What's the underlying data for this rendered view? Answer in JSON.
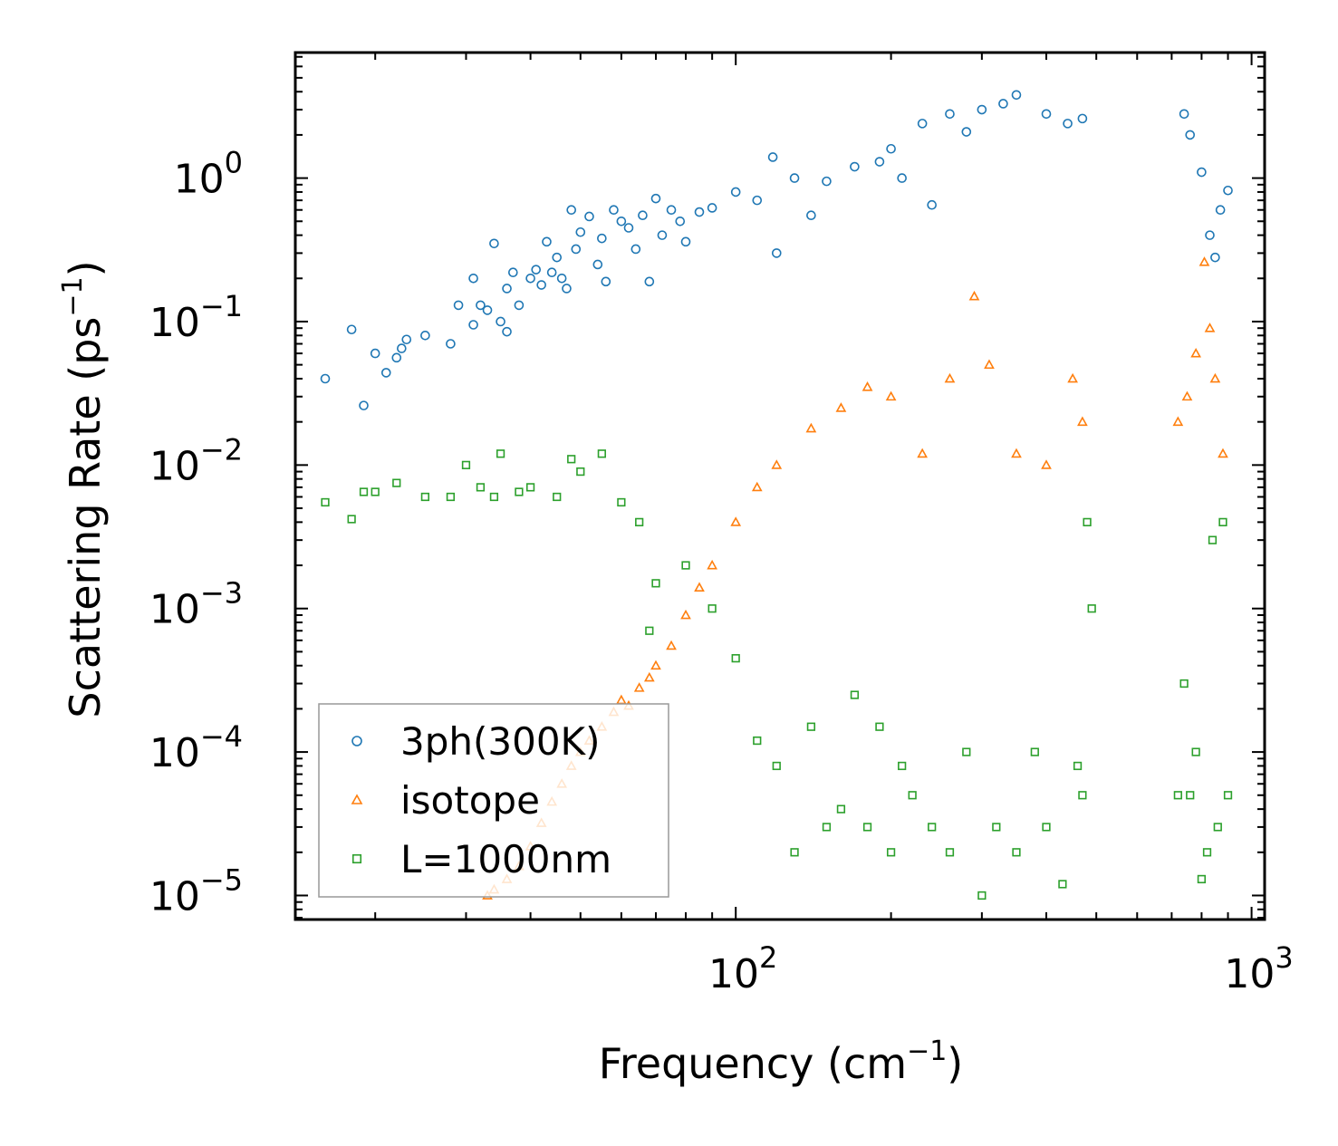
{
  "chart_data": {
    "type": "scatter",
    "xscale": "log",
    "yscale": "log",
    "xlabel_main": "Frequency (cm",
    "xlabel_sup": "−1",
    "xlabel_end": ")",
    "ylabel_main": "Scattering Rate (ps",
    "ylabel_sup": "−1",
    "ylabel_end": ")",
    "xlim": [
      14,
      1060
    ],
    "ylim": [
      6.8e-06,
      7.5
    ],
    "x_ticks": [
      {
        "value": 100,
        "base": "10",
        "exp": "2"
      },
      {
        "value": 1000,
        "base": "10",
        "exp": "3"
      }
    ],
    "y_ticks": [
      {
        "value": 1,
        "base": "10",
        "exp": "0"
      },
      {
        "value": 0.1,
        "base": "10",
        "exp": "−1"
      },
      {
        "value": 0.01,
        "base": "10",
        "exp": "−2"
      },
      {
        "value": 0.001,
        "base": "10",
        "exp": "−3"
      },
      {
        "value": 0.0001,
        "base": "10",
        "exp": "−4"
      },
      {
        "value": 1e-05,
        "base": "10",
        "exp": "−5"
      }
    ],
    "legend_position": "lower-left",
    "series": [
      {
        "name": "3ph(300K)",
        "marker": "circle",
        "color": "#1f77b4",
        "points": [
          [
            16,
            0.04
          ],
          [
            18,
            0.088
          ],
          [
            19,
            0.026
          ],
          [
            20,
            0.06
          ],
          [
            21,
            0.044
          ],
          [
            22,
            0.056
          ],
          [
            22.5,
            0.065
          ],
          [
            23,
            0.075
          ],
          [
            25,
            0.08
          ],
          [
            28,
            0.07
          ],
          [
            29,
            0.13
          ],
          [
            31,
            0.2
          ],
          [
            31,
            0.095
          ],
          [
            32,
            0.13
          ],
          [
            33,
            0.12
          ],
          [
            34,
            0.35
          ],
          [
            35,
            0.1
          ],
          [
            36,
            0.17
          ],
          [
            36,
            0.085
          ],
          [
            37,
            0.22
          ],
          [
            38,
            0.13
          ],
          [
            40,
            0.2
          ],
          [
            41,
            0.23
          ],
          [
            42,
            0.18
          ],
          [
            43,
            0.36
          ],
          [
            44,
            0.22
          ],
          [
            45,
            0.28
          ],
          [
            46,
            0.2
          ],
          [
            47,
            0.17
          ],
          [
            48,
            0.6
          ],
          [
            49,
            0.32
          ],
          [
            50,
            0.42
          ],
          [
            52,
            0.54
          ],
          [
            54,
            0.25
          ],
          [
            55,
            0.38
          ],
          [
            56,
            0.19
          ],
          [
            58,
            0.6
          ],
          [
            60,
            0.5
          ],
          [
            62,
            0.45
          ],
          [
            64,
            0.32
          ],
          [
            66,
            0.55
          ],
          [
            68,
            0.19
          ],
          [
            70,
            0.72
          ],
          [
            72,
            0.4
          ],
          [
            75,
            0.6
          ],
          [
            78,
            0.5
          ],
          [
            80,
            0.36
          ],
          [
            85,
            0.58
          ],
          [
            90,
            0.62
          ],
          [
            100,
            0.8
          ],
          [
            110,
            0.7
          ],
          [
            118,
            1.4
          ],
          [
            120,
            0.3
          ],
          [
            130,
            1.0
          ],
          [
            140,
            0.55
          ],
          [
            150,
            0.95
          ],
          [
            170,
            1.2
          ],
          [
            190,
            1.3
          ],
          [
            200,
            1.6
          ],
          [
            210,
            1.0
          ],
          [
            230,
            2.4
          ],
          [
            240,
            0.65
          ],
          [
            260,
            2.8
          ],
          [
            280,
            2.1
          ],
          [
            300,
            3.0
          ],
          [
            330,
            3.3
          ],
          [
            350,
            3.8
          ],
          [
            400,
            2.8
          ],
          [
            440,
            2.4
          ],
          [
            470,
            2.6
          ],
          [
            740,
            2.8
          ],
          [
            760,
            2.0
          ],
          [
            800,
            1.1
          ],
          [
            830,
            0.4
          ],
          [
            850,
            0.28
          ],
          [
            870,
            0.6
          ],
          [
            900,
            0.82
          ]
        ]
      },
      {
        "name": "isotope",
        "marker": "triangle",
        "color": "#ff7f0e",
        "points": [
          [
            33,
            1e-05
          ],
          [
            34,
            1.1e-05
          ],
          [
            36,
            1.3e-05
          ],
          [
            38,
            1.6e-05
          ],
          [
            40,
            2.2e-05
          ],
          [
            42,
            3.2e-05
          ],
          [
            44,
            4.5e-05
          ],
          [
            46,
            6e-05
          ],
          [
            48,
            8e-05
          ],
          [
            50,
            0.0001
          ],
          [
            52,
            0.00012
          ],
          [
            55,
            0.00015
          ],
          [
            58,
            0.00019
          ],
          [
            60,
            0.00023
          ],
          [
            62,
            0.00021
          ],
          [
            65,
            0.00028
          ],
          [
            68,
            0.00033
          ],
          [
            70,
            0.0004
          ],
          [
            75,
            0.00055
          ],
          [
            80,
            0.0009
          ],
          [
            85,
            0.0014
          ],
          [
            90,
            0.002
          ],
          [
            100,
            0.004
          ],
          [
            110,
            0.007
          ],
          [
            120,
            0.01
          ],
          [
            140,
            0.018
          ],
          [
            160,
            0.025
          ],
          [
            180,
            0.035
          ],
          [
            200,
            0.03
          ],
          [
            230,
            0.012
          ],
          [
            260,
            0.04
          ],
          [
            290,
            0.15
          ],
          [
            310,
            0.05
          ],
          [
            350,
            0.012
          ],
          [
            400,
            0.01
          ],
          [
            450,
            0.04
          ],
          [
            470,
            0.02
          ],
          [
            720,
            0.02
          ],
          [
            750,
            0.03
          ],
          [
            780,
            0.06
          ],
          [
            810,
            0.26
          ],
          [
            830,
            0.09
          ],
          [
            850,
            0.04
          ],
          [
            880,
            0.012
          ]
        ]
      },
      {
        "name": "L=1000nm",
        "marker": "square",
        "color": "#2ca02c",
        "points": [
          [
            16,
            0.0055
          ],
          [
            18,
            0.0042
          ],
          [
            19,
            0.0065
          ],
          [
            20,
            0.0065
          ],
          [
            22,
            0.0075
          ],
          [
            25,
            0.006
          ],
          [
            28,
            0.006
          ],
          [
            30,
            0.01
          ],
          [
            32,
            0.007
          ],
          [
            34,
            0.006
          ],
          [
            35,
            0.012
          ],
          [
            38,
            0.0065
          ],
          [
            40,
            0.007
          ],
          [
            45,
            0.006
          ],
          [
            48,
            0.011
          ],
          [
            50,
            0.009
          ],
          [
            55,
            0.012
          ],
          [
            60,
            0.0055
          ],
          [
            65,
            0.004
          ],
          [
            68,
            0.0007
          ],
          [
            70,
            0.0015
          ],
          [
            80,
            0.002
          ],
          [
            90,
            0.001
          ],
          [
            100,
            0.00045
          ],
          [
            110,
            0.00012
          ],
          [
            120,
            8e-05
          ],
          [
            130,
            2e-05
          ],
          [
            140,
            0.00015
          ],
          [
            150,
            3e-05
          ],
          [
            160,
            4e-05
          ],
          [
            170,
            0.00025
          ],
          [
            180,
            3e-05
          ],
          [
            190,
            0.00015
          ],
          [
            200,
            2e-05
          ],
          [
            210,
            8e-05
          ],
          [
            220,
            5e-05
          ],
          [
            240,
            3e-05
          ],
          [
            260,
            2e-05
          ],
          [
            280,
            0.0001
          ],
          [
            300,
            1e-05
          ],
          [
            320,
            3e-05
          ],
          [
            350,
            2e-05
          ],
          [
            380,
            0.0001
          ],
          [
            400,
            3e-05
          ],
          [
            430,
            1.2e-05
          ],
          [
            460,
            8e-05
          ],
          [
            470,
            5e-05
          ],
          [
            480,
            0.004
          ],
          [
            490,
            0.001
          ],
          [
            720,
            5e-05
          ],
          [
            740,
            0.0003
          ],
          [
            760,
            5e-05
          ],
          [
            780,
            0.0001
          ],
          [
            800,
            1.3e-05
          ],
          [
            820,
            2e-05
          ],
          [
            840,
            0.003
          ],
          [
            860,
            3e-05
          ],
          [
            880,
            0.004
          ],
          [
            900,
            5e-05
          ]
        ]
      }
    ]
  }
}
